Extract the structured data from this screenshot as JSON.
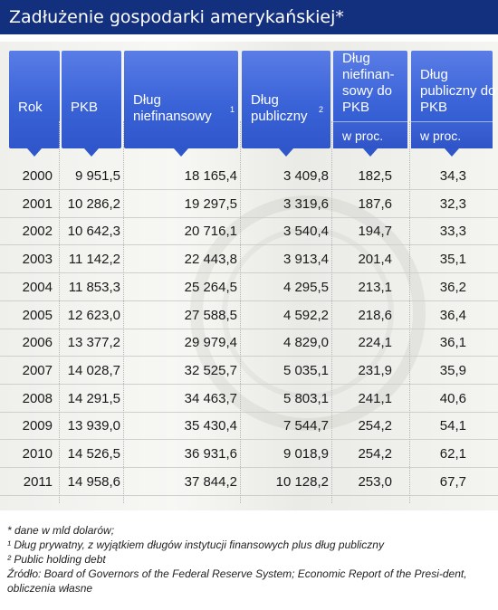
{
  "title": "Zadłużenie gospodarki amerykańskiej*",
  "headers": [
    {
      "label": "Rok",
      "sup": "",
      "unit": ""
    },
    {
      "label": "PKB",
      "sup": "",
      "unit": ""
    },
    {
      "label": "Dług niefinansowy",
      "sup": "1",
      "unit": ""
    },
    {
      "label": "Dług publiczny",
      "sup": "2",
      "unit": ""
    },
    {
      "label": "Dług niefinan- sowy do PKB",
      "sup": "",
      "unit": "w proc."
    },
    {
      "label": "Dług publiczny do PKB",
      "sup": "",
      "unit": "w proc."
    }
  ],
  "chart_data": {
    "type": "table",
    "title": "Zadłużenie gospodarki amerykańskiej*",
    "columns": [
      "Rok",
      "PKB",
      "Dług niefinansowy",
      "Dług publiczny",
      "Dług niefinansowy do PKB w proc.",
      "Dług publiczny do PKB w proc."
    ],
    "rows": [
      [
        "2000",
        "9 951,5",
        "18 165,4",
        "3 409,8",
        "182,5",
        "34,3"
      ],
      [
        "2001",
        "10 286,2",
        "19 297,5",
        "3 319,6",
        "187,6",
        "32,3"
      ],
      [
        "2002",
        "10 642,3",
        "20 716,1",
        "3 540,4",
        "194,7",
        "33,3"
      ],
      [
        "2003",
        "11 142,2",
        "22 443,8",
        "3 913,4",
        "201,4",
        "35,1"
      ],
      [
        "2004",
        "11 853,3",
        "25 264,5",
        "4 295,5",
        "213,1",
        "36,2"
      ],
      [
        "2005",
        "12 623,0",
        "27 588,5",
        "4 592,2",
        "218,6",
        "36,4"
      ],
      [
        "2006",
        "13 377,2",
        "29 979,4",
        "4 829,0",
        "224,1",
        "36,1"
      ],
      [
        "2007",
        "14 028,7",
        "32 525,7",
        "5 035,1",
        "231,9",
        "35,9"
      ],
      [
        "2008",
        "14 291,5",
        "34 463,7",
        "5 803,1",
        "241,1",
        "40,6"
      ],
      [
        "2009",
        "13 939,0",
        "35 430,4",
        "7 544,7",
        "254,2",
        "54,1"
      ],
      [
        "2010",
        "14 526,5",
        "36 931,6",
        "9 018,9",
        "254,2",
        "62,1"
      ],
      [
        "2011",
        "14 958,6",
        "37 844,2",
        "10 128,2",
        "253,0",
        "67,7"
      ]
    ]
  },
  "notes": [
    "* dane w mld dolarów;",
    "¹ Dług prywatny, z wyjątkiem długów instytucji finansowych plus dług publiczny",
    "² Public holding debt",
    "Źródło:  Board of Governors  of the Federal Reserve System; Economic Report of the Presi-dent, obliczenia własne"
  ],
  "colors": {
    "title_bg": "#13307f",
    "header_bg": "#3a63d8"
  }
}
